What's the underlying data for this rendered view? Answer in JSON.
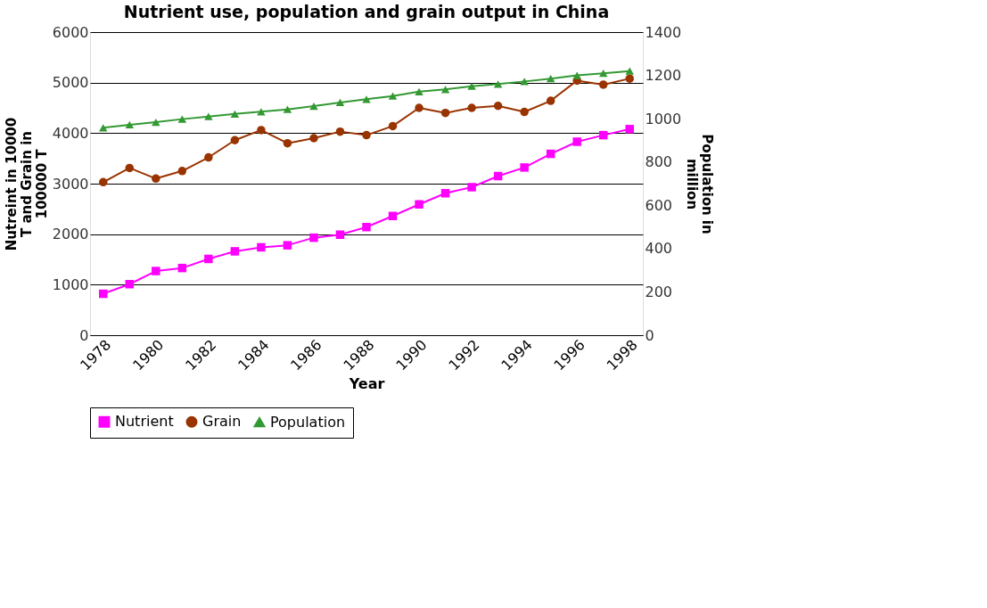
{
  "chart_data": {
    "type": "line",
    "title": "Nutrient use, population and grain output in China",
    "xlabel": "Year",
    "ylabel": "Nutreint in 10000 T and Grain in 100000 T",
    "y2label": "Population in million",
    "categories": [
      "1978",
      null,
      "1980",
      null,
      "1982",
      null,
      "1984",
      null,
      "1986",
      null,
      "1988",
      null,
      "1990",
      null,
      "1992",
      null,
      "1994",
      null,
      "1996",
      null,
      "1998"
    ],
    "ylim": [
      0,
      6000
    ],
    "yticks": [
      0,
      1000,
      2000,
      3000,
      4000,
      5000,
      6000
    ],
    "y2lim": [
      0,
      1400
    ],
    "y2ticks": [
      0,
      200,
      400,
      600,
      800,
      1000,
      1200,
      1400
    ],
    "grid": "y",
    "legend": "bottom",
    "series": [
      {
        "name": "Nutrient",
        "color": "#ff00ff",
        "marker": "square",
        "values": [
          820,
          1010,
          1270,
          1330,
          1510,
          1660,
          1740,
          1780,
          1930,
          1990,
          2140,
          2360,
          2590,
          2810,
          2930,
          3150,
          3320,
          3590,
          3830,
          3960,
          4080
        ]
      },
      {
        "name": "Grain",
        "color": "#993300",
        "marker": "circle",
        "values": [
          3030,
          3310,
          3100,
          3250,
          3520,
          3860,
          4060,
          3800,
          3900,
          4030,
          3960,
          4140,
          4500,
          4400,
          4500,
          4540,
          4420,
          4640,
          5040,
          4960,
          5080
        ]
      },
      {
        "name": "Population",
        "color": "#339933",
        "marker": "triangle",
        "axis": "y2",
        "values": [
          958,
          972,
          984,
          998,
          1010,
          1022,
          1032,
          1043,
          1058,
          1075,
          1090,
          1105,
          1125,
          1135,
          1150,
          1160,
          1172,
          1185,
          1200,
          1210,
          1220
        ]
      }
    ]
  }
}
